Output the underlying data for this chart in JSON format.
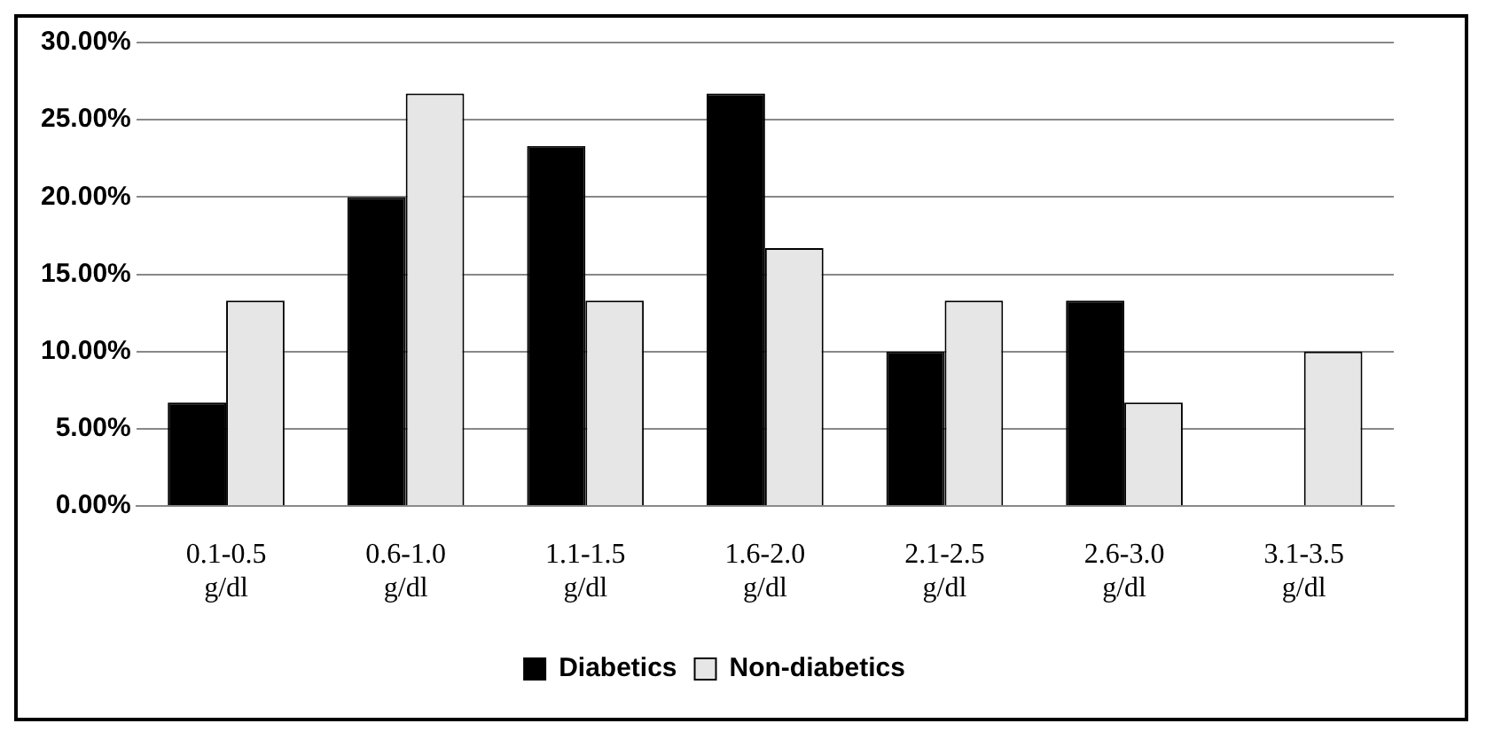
{
  "chart_data": {
    "type": "bar",
    "categories": [
      "0.1-0.5 g/dl",
      "0.6-1.0 g/dl",
      "1.1-1.5 g/dl",
      "1.6-2.0 g/dl",
      "2.1-2.5 g/dl",
      "2.6-3.0 g/dl",
      "3.1-3.5 g/dl"
    ],
    "series": [
      {
        "name": "Diabetics",
        "color": "#000000",
        "values": [
          6.7,
          20,
          23.3,
          26.7,
          10,
          13.3,
          0
        ]
      },
      {
        "name": "Non-diabetics",
        "color": "#e6e6e6",
        "values": [
          13.3,
          26.7,
          13.3,
          16.7,
          13.3,
          6.7,
          10
        ]
      }
    ],
    "ylim": [
      0,
      30
    ],
    "yticks": [
      {
        "value": 0,
        "label": "0.00%"
      },
      {
        "value": 5,
        "label": "5.00%"
      },
      {
        "value": 10,
        "label": "10.00%"
      },
      {
        "value": 15,
        "label": "15.00%"
      },
      {
        "value": 20,
        "label": "20.00%"
      },
      {
        "value": 25,
        "label": "25.00%"
      },
      {
        "value": 30,
        "label": "30.00%"
      }
    ],
    "grid": "y",
    "legend": "bottom"
  }
}
